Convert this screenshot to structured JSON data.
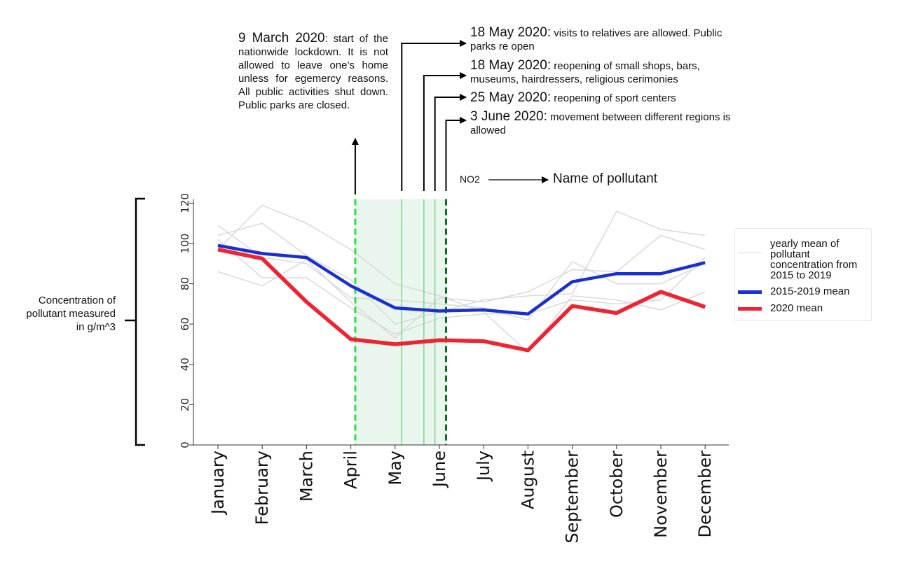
{
  "annotations": {
    "lockdown": {
      "date": "9 March 2020",
      "text": ": start of the nationwide lockdown. It is not allowed to leave one’s home unless for egemercy reasons. All public activities shut down. Public parks are closed."
    },
    "visits": {
      "date": "18 May 2020:",
      "text": " visits to relatives are allowed. Public parks re open"
    },
    "shops": {
      "date": "18 May 2020:",
      "text": " reopening of small shops, bars, museums, hairdressers, religious cerimonies"
    },
    "sport": {
      "date": "25 May 2020:",
      "text": " reopening of sport centers"
    },
    "regions": {
      "date": "3 June 2020:",
      "text": " movement between different regions is allowed"
    }
  },
  "pollutant": {
    "code": "NO2",
    "caption": "Name of pollutant"
  },
  "ylabel": "Concentration of pollutant measured in g/m^3",
  "legend": {
    "placement": "right",
    "items": [
      {
        "label": "yearly mean of pollutant concentration from 2015 to 2019",
        "color": "#d9d9d9"
      },
      {
        "label": "2015-2019 mean",
        "color": "#1a2fd0"
      },
      {
        "label": "2020 mean",
        "color": "#ee2432"
      }
    ]
  },
  "colors": {
    "lockdown_shade": "#e8f6ee",
    "lockdown_start_line": "#2ee04a",
    "reopening_lines": "#66cc77",
    "phase2_line": "#0a6b24",
    "axis": "#333333"
  },
  "chart_data": {
    "type": "line",
    "categories": [
      "January",
      "February",
      "March",
      "April",
      "May",
      "June",
      "July",
      "August",
      "September",
      "October",
      "November",
      "December"
    ],
    "ylim": [
      0,
      122
    ],
    "yticks": [
      "0",
      "20",
      "40",
      "60",
      "80",
      "100",
      "120"
    ],
    "grid": false,
    "series": [
      {
        "name": "2015-2019 mean",
        "values": [
          99,
          95,
          93,
          79,
          68,
          66.5,
          67,
          65,
          81,
          85,
          85,
          90.5
        ]
      },
      {
        "name": "2020 mean",
        "values": [
          97,
          92.5,
          71,
          52.5,
          50,
          52,
          51.5,
          47,
          69,
          65.5,
          76,
          68.5
        ]
      }
    ],
    "yearly_means": [
      [
        109,
        93,
        90,
        73,
        72,
        70,
        68,
        62,
        91,
        80,
        80,
        90
      ],
      [
        104,
        110,
        94,
        82,
        60,
        66,
        72,
        74,
        75,
        116,
        107,
        104
      ],
      [
        86,
        79,
        92,
        71,
        53,
        73,
        71,
        76,
        87,
        86,
        104,
        97
      ],
      [
        97,
        119,
        110,
        97,
        80,
        74,
        66,
        46,
        74,
        72,
        67,
        76
      ],
      [
        102,
        83,
        83,
        68,
        55,
        63,
        65,
        65,
        72,
        70,
        72,
        93
      ]
    ],
    "event_lines": [
      {
        "date": "9 March 2020",
        "month_position": 3.1,
        "style": "dashed"
      },
      {
        "date": "18 May 2020",
        "month_position": 4.15,
        "style": "solid"
      },
      {
        "date": "18 May 2020",
        "month_position": 4.65,
        "style": "solid"
      },
      {
        "date": "25 May 2020",
        "month_position": 4.9,
        "style": "solid"
      },
      {
        "date": "3 June 2020",
        "month_position": 5.15,
        "style": "dashed"
      }
    ]
  }
}
